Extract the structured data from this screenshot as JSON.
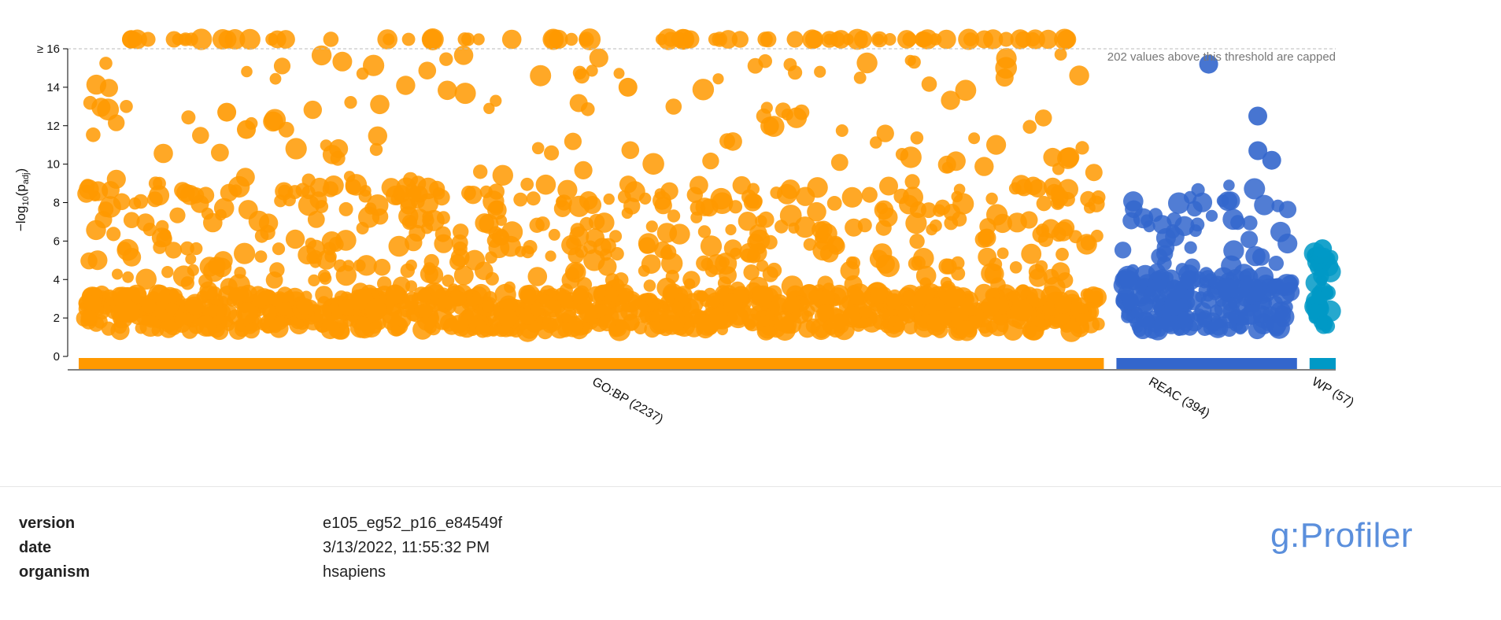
{
  "chart_data": {
    "type": "scatter",
    "title": "",
    "ylabel": "−log10(padj)",
    "ylabel_parts": {
      "main": "−log",
      "sub1": "10",
      "open": "(p",
      "sub2": "adj",
      "close": ")"
    },
    "ylim": [
      0,
      16
    ],
    "y_ticks": [
      "0",
      "2",
      "4",
      "6",
      "8",
      "10",
      "12",
      "14",
      "≥ 16"
    ],
    "threshold": 16,
    "cap_note": "202 values above this threshold are capped",
    "grid": false,
    "sources": [
      {
        "name": "GO:BP",
        "label": "GO:BP (2237)",
        "count": 2237,
        "color": "#ff9900",
        "x_range": [
          0,
          2237
        ]
      },
      {
        "name": "REAC",
        "label": "REAC (394)",
        "count": 394,
        "color": "#3366cc",
        "x_range": [
          2237,
          2631
        ]
      },
      {
        "name": "WP",
        "label": "WP (57)",
        "count": 57,
        "color": "#0099c6",
        "x_range": [
          2631,
          2688
        ]
      }
    ],
    "notable_points": [
      {
        "source": "REAC",
        "y": 15.2
      },
      {
        "source": "REAC",
        "y": 12.5
      },
      {
        "source": "REAC",
        "y": 10.7
      },
      {
        "source": "REAC",
        "y": 10.2
      },
      {
        "source": "GO:BP",
        "y": 14.0
      },
      {
        "source": "GO:BP",
        "y": 12.7
      },
      {
        "source": "GO:BP",
        "y": 11.8
      },
      {
        "source": "WP",
        "y": 5.6
      }
    ]
  },
  "metadata": {
    "rows": [
      {
        "key": "version",
        "value": "e105_eg52_p16_e84549f"
      },
      {
        "key": "date",
        "value": "3/13/2022, 11:55:32 PM"
      },
      {
        "key": "organism",
        "value": "hsapiens"
      }
    ]
  },
  "brand": {
    "name": "g:Profiler"
  }
}
